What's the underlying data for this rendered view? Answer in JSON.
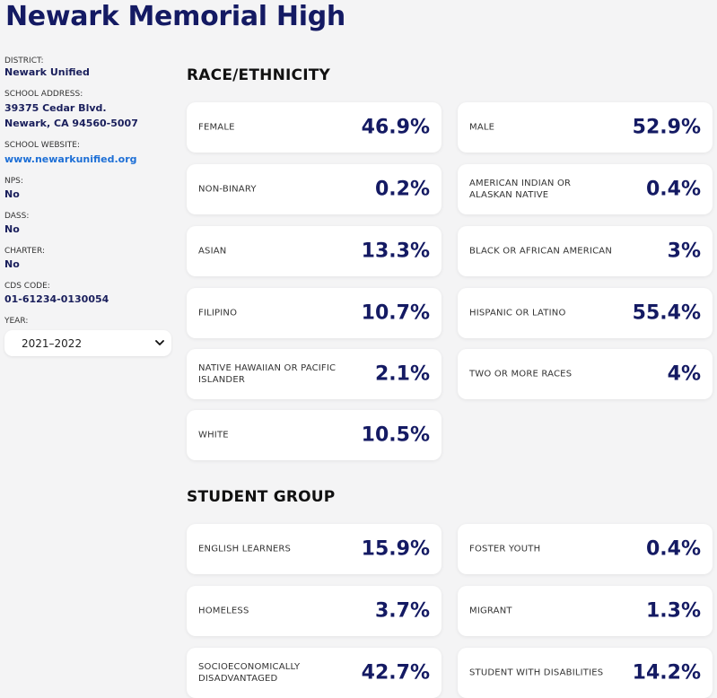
{
  "school_name": "Newark Memorial High",
  "sidebar": {
    "district_label": "DISTRICT:",
    "district": "Newark Unified",
    "address_label": "SCHOOL ADDRESS:",
    "address_line1": "39375 Cedar Blvd.",
    "address_line2": "Newark, CA 94560-5007",
    "website_label": "SCHOOL WEBSITE:",
    "website": "www.newarkunified.org",
    "nps_label": "NPS:",
    "nps": "No",
    "dass_label": "DASS:",
    "dass": "No",
    "charter_label": "CHARTER:",
    "charter": "No",
    "cds_label": "CDS CODE:",
    "cds": "01-61234-0130054",
    "year_label": "YEAR:",
    "year": "2021–2022"
  },
  "race": {
    "title": "RACE/ETHNICITY",
    "items": [
      {
        "label": "FEMALE",
        "value": "46.9%"
      },
      {
        "label": "MALE",
        "value": "52.9%"
      },
      {
        "label": "NON-BINARY",
        "value": "0.2%"
      },
      {
        "label": "AMERICAN INDIAN OR ALASKAN NATIVE",
        "value": "0.4%"
      },
      {
        "label": "ASIAN",
        "value": "13.3%"
      },
      {
        "label": "BLACK OR AFRICAN AMERICAN",
        "value": "3%"
      },
      {
        "label": "FILIPINO",
        "value": "10.7%"
      },
      {
        "label": "HISPANIC OR LATINO",
        "value": "55.4%"
      },
      {
        "label": "NATIVE HAWAIIAN OR PACIFIC ISLANDER",
        "value": "2.1%"
      },
      {
        "label": "TWO OR MORE RACES",
        "value": "4%"
      },
      {
        "label": "WHITE",
        "value": "10.5%"
      }
    ]
  },
  "groups": {
    "title": "STUDENT GROUP",
    "items": [
      {
        "label": "ENGLISH LEARNERS",
        "value": "15.9%"
      },
      {
        "label": "FOSTER YOUTH",
        "value": "0.4%"
      },
      {
        "label": "HOMELESS",
        "value": "3.7%"
      },
      {
        "label": "MIGRANT",
        "value": "1.3%"
      },
      {
        "label": "SOCIOECONOMICALLY DISADVANTAGED",
        "value": "42.7%"
      },
      {
        "label": "STUDENT WITH DISABILITIES",
        "value": "14.2%"
      }
    ]
  }
}
